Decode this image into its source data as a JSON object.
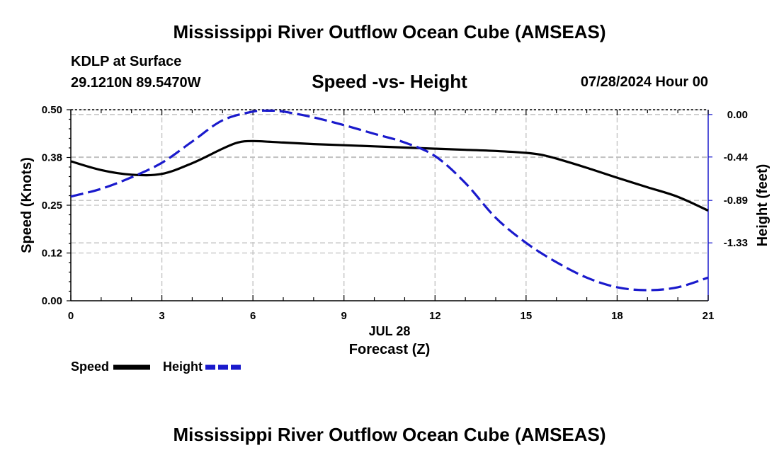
{
  "header": {
    "title": "Mississippi River Outflow Ocean Cube (AMSEAS)",
    "title_repeat": "Mississippi River Outflow Ocean Cube (AMSEAS)",
    "station": "KDLP at Surface",
    "coords": "29.1210N  89.5470W",
    "subtitle": "Speed -vs- Height",
    "datetime": "07/28/2024 Hour 00"
  },
  "legend": {
    "speed_label": "Speed",
    "height_label": "Height"
  },
  "colors": {
    "speed": "#000000",
    "height": "#1a1acc",
    "grid": "#c0c0c0"
  },
  "chart_data": {
    "type": "line",
    "title": "Speed -vs- Height",
    "xlabel": "Forecast (Z)",
    "xlabel_date": "JUL 28",
    "ylabel": "Speed (Knots)",
    "y2label": "Height (feet)",
    "xlim": [
      0,
      21
    ],
    "ylim": [
      0,
      0.5
    ],
    "y2lim": [
      -1.93,
      0.05
    ],
    "x_ticks": [
      0,
      3,
      6,
      9,
      12,
      15,
      18,
      21
    ],
    "y_ticks": [
      0.0,
      0.125,
      0.25,
      0.375,
      0.5
    ],
    "y_tick_labels": [
      "0.00",
      "0.12",
      "0.25",
      "0.38",
      "0.50"
    ],
    "y2_ticks": [
      0.0,
      -0.44,
      -0.89,
      -1.33
    ],
    "y2_tick_labels": [
      "0.00",
      "-0.44",
      "-0.89",
      "-1.33"
    ],
    "grid": true,
    "series": [
      {
        "name": "Speed",
        "axis": "left",
        "style": "solid",
        "x": [
          0,
          1,
          2,
          3,
          4,
          5,
          5.5,
          6,
          7,
          8,
          9,
          10,
          11,
          12,
          13,
          14,
          15,
          15.5,
          16,
          17,
          18,
          19,
          20,
          21
        ],
        "values": [
          0.365,
          0.342,
          0.33,
          0.332,
          0.36,
          0.398,
          0.414,
          0.418,
          0.414,
          0.41,
          0.407,
          0.404,
          0.401,
          0.398,
          0.395,
          0.392,
          0.387,
          0.382,
          0.372,
          0.348,
          0.322,
          0.297,
          0.272,
          0.236
        ]
      },
      {
        "name": "Height",
        "axis": "right",
        "style": "dashed",
        "x": [
          0,
          1,
          2,
          3,
          4,
          5,
          6,
          6.5,
          7,
          8,
          9,
          10,
          11,
          12,
          13,
          14,
          15,
          16,
          17,
          18,
          19,
          20,
          21
        ],
        "values": [
          -0.85,
          -0.77,
          -0.65,
          -0.5,
          -0.28,
          -0.06,
          0.03,
          0.04,
          0.03,
          -0.03,
          -0.11,
          -0.2,
          -0.29,
          -0.43,
          -0.71,
          -1.07,
          -1.33,
          -1.53,
          -1.69,
          -1.79,
          -1.82,
          -1.79,
          -1.69
        ]
      }
    ]
  }
}
